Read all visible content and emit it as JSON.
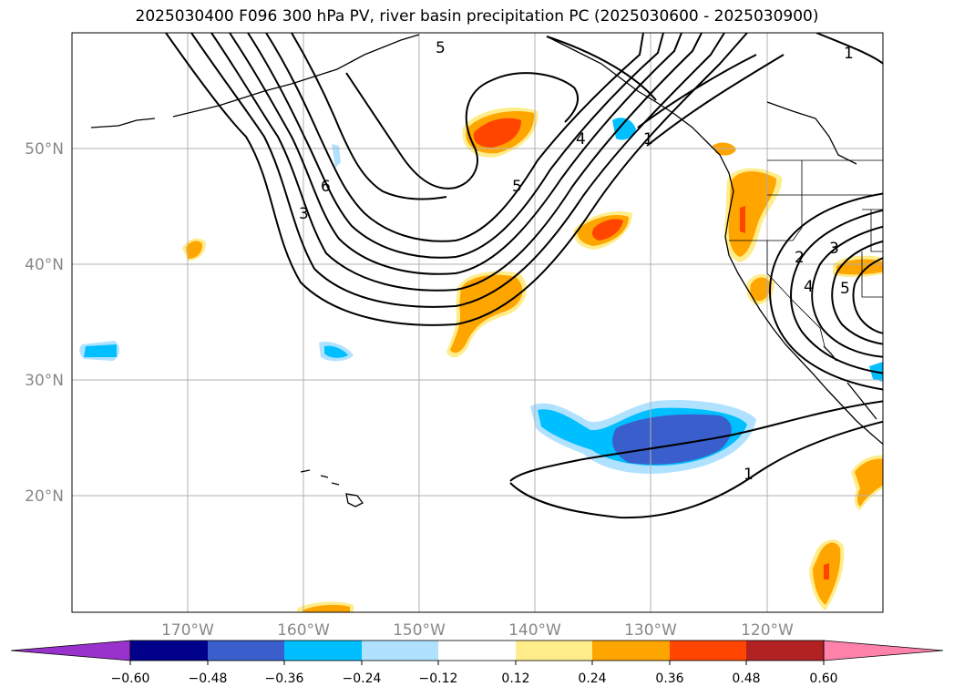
{
  "title": "2025030400 F096 300 hPa PV, river basin precipitation PC (2025030600 - 2025030900)",
  "map": {
    "lon_range": [
      -180,
      -110
    ],
    "lat_range": [
      10,
      60
    ],
    "lon_ticks": [
      {
        "lon": -170,
        "label": "170°W"
      },
      {
        "lon": -160,
        "label": "160°W"
      },
      {
        "lon": -150,
        "label": "150°W"
      },
      {
        "lon": -140,
        "label": "140°W"
      },
      {
        "lon": -130,
        "label": "130°W"
      },
      {
        "lon": -120,
        "label": "120°W"
      }
    ],
    "lat_ticks": [
      {
        "lat": 20,
        "label": "20°N"
      },
      {
        "lat": 30,
        "label": "30°N"
      },
      {
        "lat": 40,
        "label": "40°N"
      },
      {
        "lat": 50,
        "label": "50°N"
      }
    ],
    "grid": true,
    "gridline_color": "#b0b0b0",
    "tick_label_color": "#888888"
  },
  "pv_contour_labels": [
    "5",
    "6",
    "3",
    "4",
    "5",
    "1",
    "2",
    "3",
    "4",
    "5",
    "1",
    "1"
  ],
  "colorbar": {
    "colors": [
      "#9932cc",
      "#00008b",
      "#3a5fcd",
      "#00bfff",
      "#b0e2ff",
      "#ffffff",
      "#ffec8b",
      "#ffa500",
      "#ff4500",
      "#b22222",
      "#ff82ab"
    ],
    "tick_labels": [
      "−0.60",
      "−0.48",
      "−0.36",
      "−0.24",
      "−0.12",
      "0.12",
      "0.24",
      "0.36",
      "0.48",
      "0.60"
    ],
    "extend": "both"
  }
}
